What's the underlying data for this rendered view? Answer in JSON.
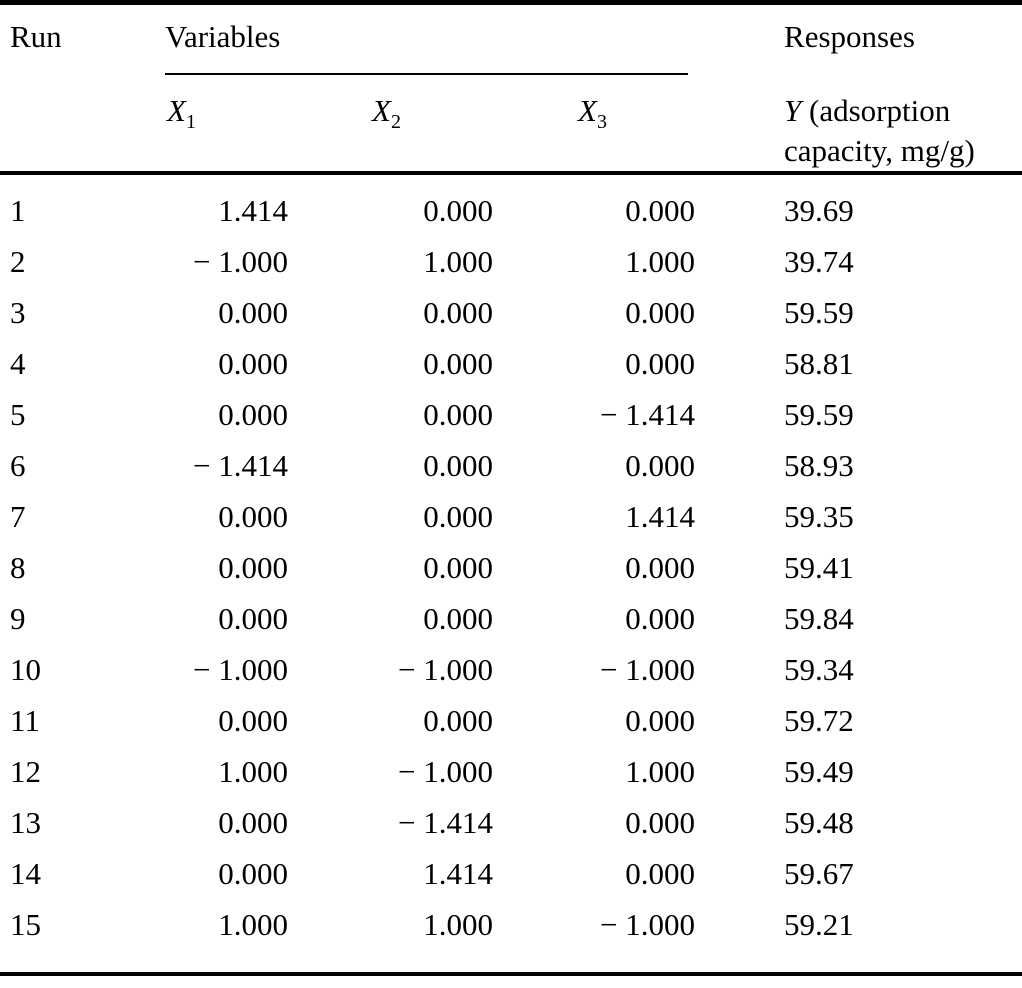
{
  "table": {
    "headers": {
      "run": "Run",
      "variables_group": "Variables",
      "responses_group": "Responses",
      "x1": {
        "base": "X",
        "sub": "1"
      },
      "x2": {
        "base": "X",
        "sub": "2"
      },
      "x3": {
        "base": "X",
        "sub": "3"
      },
      "y": {
        "prefix": "Y",
        "rest": "(adsorption capacity, mg/g)"
      }
    },
    "rows": [
      {
        "run": "1",
        "x1": "1.414",
        "x2": "0.000",
        "x3": "0.000",
        "y": "39.69"
      },
      {
        "run": "2",
        "x1": "− 1.000",
        "x2": "1.000",
        "x3": "1.000",
        "y": "39.74"
      },
      {
        "run": "3",
        "x1": "0.000",
        "x2": "0.000",
        "x3": "0.000",
        "y": "59.59"
      },
      {
        "run": "4",
        "x1": "0.000",
        "x2": "0.000",
        "x3": "0.000",
        "y": "58.81"
      },
      {
        "run": "5",
        "x1": "0.000",
        "x2": "0.000",
        "x3": "− 1.414",
        "y": "59.59"
      },
      {
        "run": "6",
        "x1": "− 1.414",
        "x2": "0.000",
        "x3": "0.000",
        "y": "58.93"
      },
      {
        "run": "7",
        "x1": "0.000",
        "x2": "0.000",
        "x3": "1.414",
        "y": "59.35"
      },
      {
        "run": "8",
        "x1": "0.000",
        "x2": "0.000",
        "x3": "0.000",
        "y": "59.41"
      },
      {
        "run": "9",
        "x1": "0.000",
        "x2": "0.000",
        "x3": "0.000",
        "y": "59.84"
      },
      {
        "run": "10",
        "x1": "− 1.000",
        "x2": "− 1.000",
        "x3": "− 1.000",
        "y": "59.34"
      },
      {
        "run": "11",
        "x1": "0.000",
        "x2": "0.000",
        "x3": "0.000",
        "y": "59.72"
      },
      {
        "run": "12",
        "x1": "1.000",
        "x2": "− 1.000",
        "x3": "1.000",
        "y": "59.49"
      },
      {
        "run": "13",
        "x1": "0.000",
        "x2": "− 1.414",
        "x3": "0.000",
        "y": "59.48"
      },
      {
        "run": "14",
        "x1": "0.000",
        "x2": "1.414",
        "x3": "0.000",
        "y": "59.67"
      },
      {
        "run": "15",
        "x1": "1.000",
        "x2": "1.000",
        "x3": "− 1.000",
        "y": "59.21"
      }
    ]
  }
}
